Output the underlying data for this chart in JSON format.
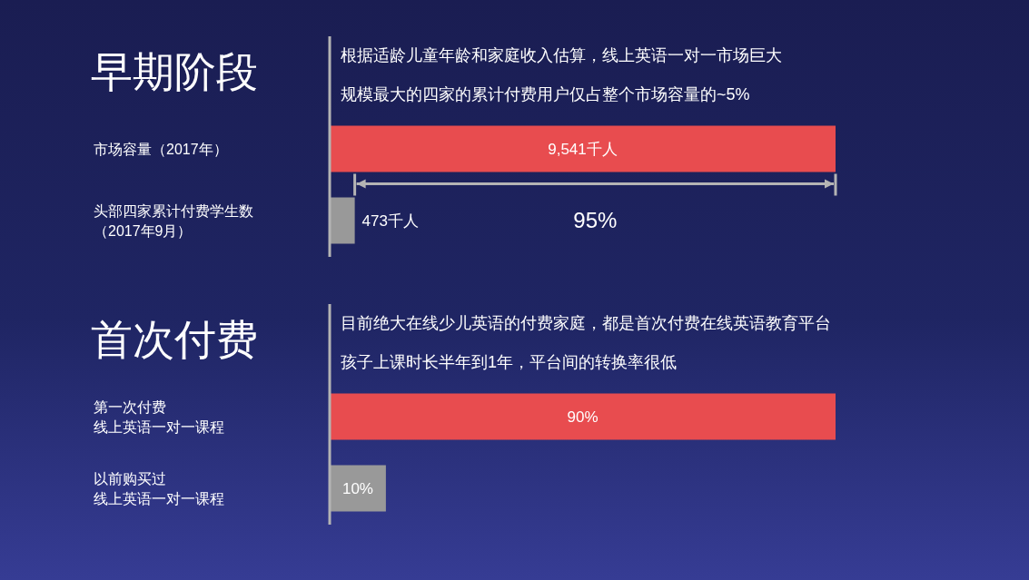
{
  "chart_data": [
    {
      "type": "bar",
      "orientation": "horizontal",
      "title": "早期阶段",
      "subtitle": "根据适龄儿童年龄和家庭收入估算，线上英语一对一市场巨大",
      "annotations": [
        "规模最大的四家的累计付费用户仅占整个市场容量的~5%",
        "95%"
      ],
      "categories": [
        "市场容量（2017年）",
        "头部四家累计付费学生数（2017年9月）"
      ],
      "values": [
        9541,
        473
      ],
      "colors": [
        "#e84c4f",
        "#999999"
      ],
      "value_labels": [
        "9,541千人",
        "473千人"
      ]
    },
    {
      "type": "bar",
      "orientation": "horizontal",
      "title": "首次付费",
      "subtitle": "目前绝大在线少儿英语的付费家庭，都是首次付费在线英语教育平台",
      "annotations": [
        "孩子上课时长半年到1年，平台间的转换率很低"
      ],
      "categories": [
        "第一次付费线上英语一对一课程",
        "以前购买过线上英语一对一课程"
      ],
      "values": [
        90,
        10
      ],
      "colors": [
        "#e84c4f",
        "#999999"
      ],
      "value_labels": [
        "90%",
        "10%"
      ]
    }
  ]
}
